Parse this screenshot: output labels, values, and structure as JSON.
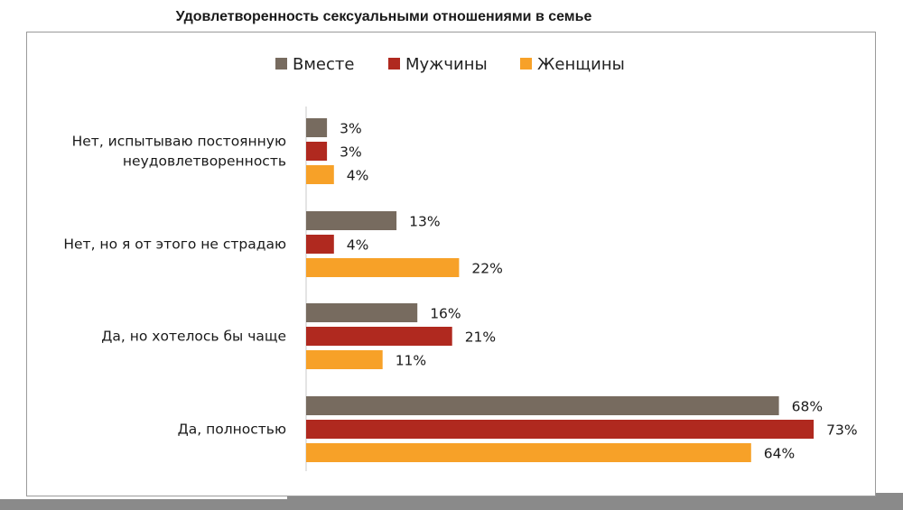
{
  "chart_data": {
    "type": "bar",
    "orientation": "horizontal",
    "title": "Удовлетворенность сексуальными отношениями в семье",
    "categories": [
      "Нет, испытываю постоянную неудовлетворенность",
      "Нет, но я от этого не страдаю",
      "Да, но хотелось бы чаще",
      "Да, полностью"
    ],
    "category_lines": [
      [
        "Нет, испытываю постоянную",
        "неудовлетворенность"
      ],
      [
        "Нет, но я от этого не страдаю"
      ],
      [
        "Да, но хотелось бы чаще"
      ],
      [
        "Да, полностью"
      ]
    ],
    "series": [
      {
        "name": "Вместе",
        "color": "#776b5f",
        "values": [
          3,
          13,
          16,
          68
        ],
        "labels": [
          "3%",
          "13%",
          "16%",
          "68%"
        ]
      },
      {
        "name": "Мужчины",
        "color": "#b0291f",
        "values": [
          3,
          4,
          21,
          73
        ],
        "labels": [
          "3%",
          "4%",
          "21%",
          "73%"
        ]
      },
      {
        "name": "Женщины",
        "color": "#f7a128",
        "values": [
          4,
          22,
          11,
          64
        ],
        "labels": [
          "4%",
          "22%",
          "11%",
          "64%"
        ]
      }
    ],
    "legend_position": "top",
    "xlim": [
      0,
      80
    ],
    "grid": false
  }
}
